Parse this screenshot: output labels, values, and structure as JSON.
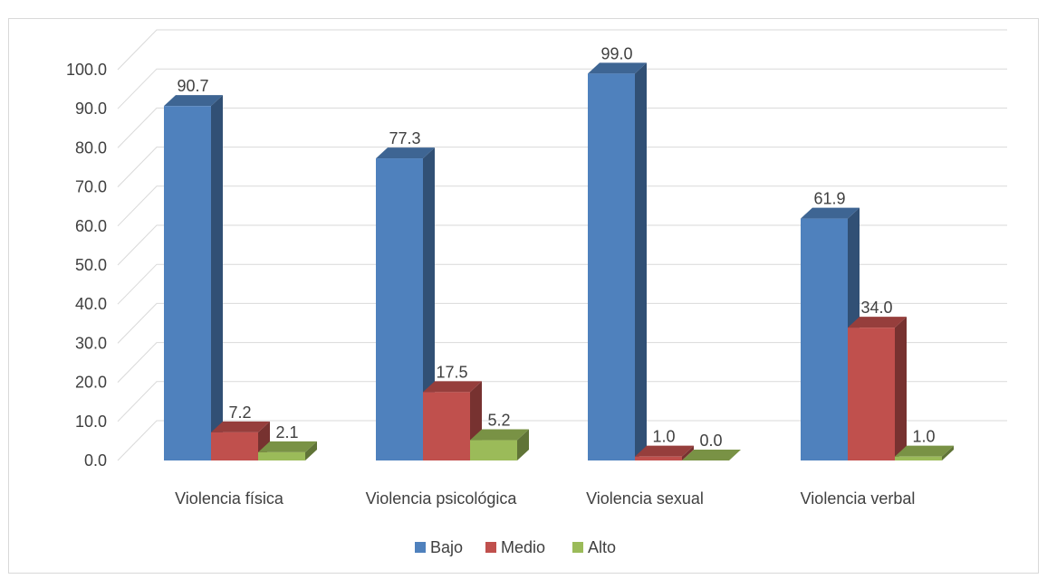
{
  "chart_data": {
    "type": "bar",
    "title": "",
    "xlabel": "",
    "ylabel": "",
    "categories": [
      "Violencia física",
      "Violencia psicológica",
      "Violencia sexual",
      "Violencia verbal"
    ],
    "series": [
      {
        "name": "Bajo",
        "values": [
          90.7,
          77.3,
          99.0,
          61.9
        ],
        "color": "#4F81BD"
      },
      {
        "name": "Medio",
        "values": [
          7.2,
          17.5,
          1.0,
          34.0
        ],
        "color": "#C0504D"
      },
      {
        "name": "Alto",
        "values": [
          2.1,
          5.2,
          0.0,
          1.0
        ],
        "color": "#9BBB59"
      }
    ],
    "ylim": [
      0,
      100
    ],
    "yticks": [
      "0.0",
      "10.0",
      "20.0",
      "30.0",
      "40.0",
      "50.0",
      "60.0",
      "70.0",
      "80.0",
      "90.0",
      "100.0"
    ],
    "grid": true,
    "three_d": true,
    "legend_position": "bottom"
  }
}
